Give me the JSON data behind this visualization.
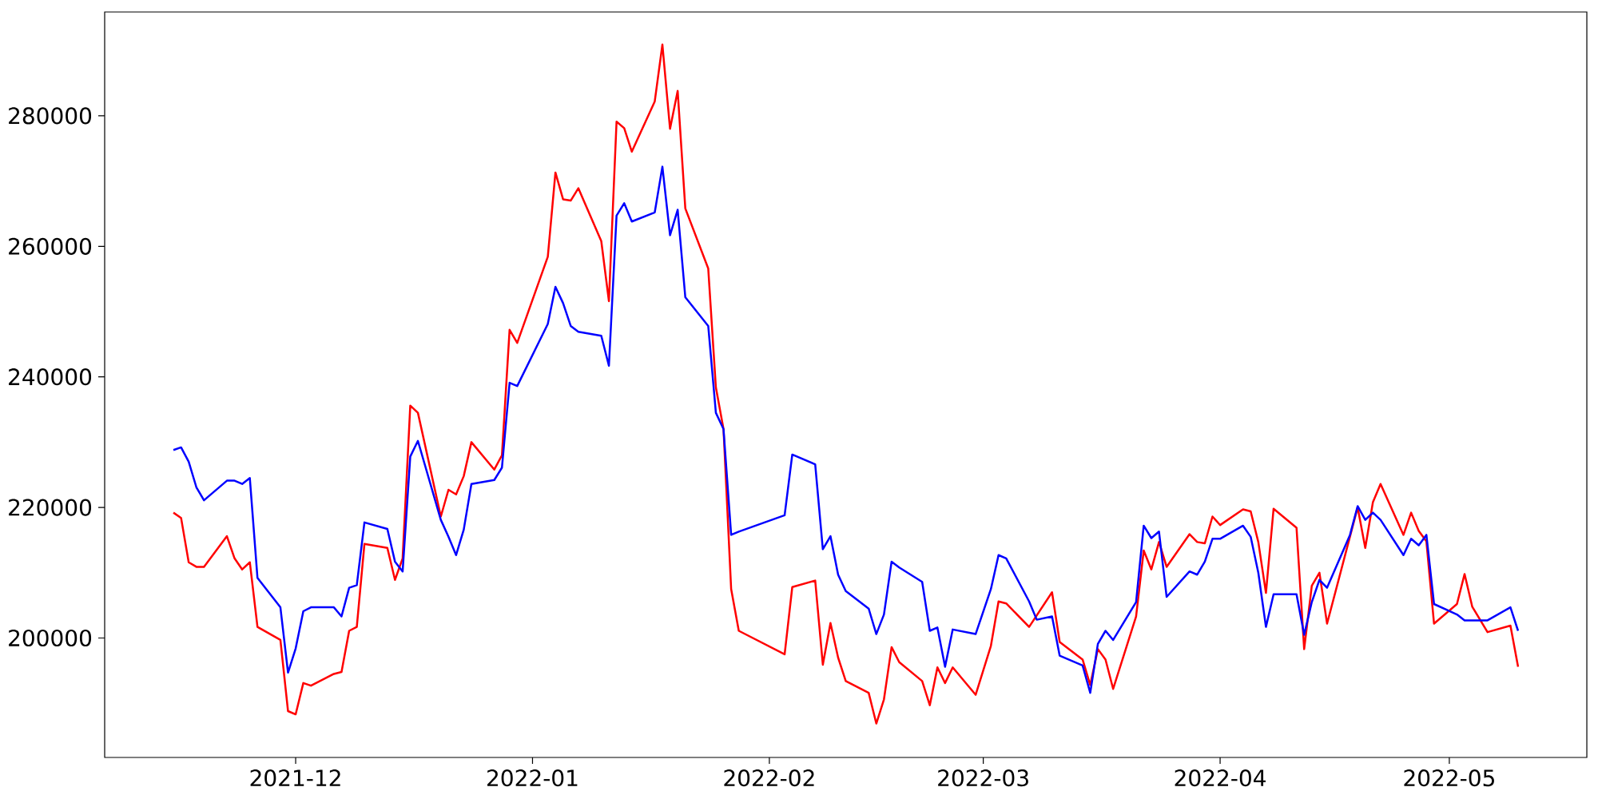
{
  "chart_data": {
    "type": "line",
    "xlim": [
      "2021-11-06",
      "2022-05-19"
    ],
    "ylim": [
      181700,
      295900
    ],
    "xticks": [
      {
        "value": "2021-12-01",
        "label": "2021-12"
      },
      {
        "value": "2022-01-01",
        "label": "2022-01"
      },
      {
        "value": "2022-02-01",
        "label": "2022-02"
      },
      {
        "value": "2022-03-01",
        "label": "2022-03"
      },
      {
        "value": "2022-04-01",
        "label": "2022-04"
      },
      {
        "value": "2022-05-01",
        "label": "2022-05"
      }
    ],
    "yticks": [
      200000,
      220000,
      240000,
      260000,
      280000
    ],
    "marker": "none",
    "line_style": "solid",
    "series": [
      {
        "color": "#ff0000",
        "x": [
          "2021-11-15",
          "2021-11-16",
          "2021-11-17",
          "2021-11-18",
          "2021-11-19",
          "2021-11-22",
          "2021-11-23",
          "2021-11-24",
          "2021-11-25",
          "2021-11-26",
          "2021-11-29",
          "2021-11-30",
          "2021-12-01",
          "2021-12-02",
          "2021-12-03",
          "2021-12-06",
          "2021-12-07",
          "2021-12-08",
          "2021-12-09",
          "2021-12-10",
          "2021-12-13",
          "2021-12-14",
          "2021-12-15",
          "2021-12-16",
          "2021-12-17",
          "2021-12-20",
          "2021-12-21",
          "2021-12-22",
          "2021-12-23",
          "2021-12-24",
          "2021-12-27",
          "2021-12-28",
          "2021-12-29",
          "2021-12-30",
          "2022-01-03",
          "2022-01-04",
          "2022-01-05",
          "2022-01-06",
          "2022-01-07",
          "2022-01-10",
          "2022-01-11",
          "2022-01-12",
          "2022-01-13",
          "2022-01-14",
          "2022-01-17",
          "2022-01-18",
          "2022-01-19",
          "2022-01-20",
          "2022-01-21",
          "2022-01-24",
          "2022-01-25",
          "2022-01-26",
          "2022-01-27",
          "2022-01-28",
          "2022-02-03",
          "2022-02-04",
          "2022-02-07",
          "2022-02-08",
          "2022-02-09",
          "2022-02-10",
          "2022-02-11",
          "2022-02-14",
          "2022-02-15",
          "2022-02-16",
          "2022-02-17",
          "2022-02-18",
          "2022-02-21",
          "2022-02-22",
          "2022-02-23",
          "2022-02-24",
          "2022-02-25",
          "2022-02-28",
          "2022-03-02",
          "2022-03-03",
          "2022-03-04",
          "2022-03-07",
          "2022-03-10",
          "2022-03-11",
          "2022-03-14",
          "2022-03-15",
          "2022-03-16",
          "2022-03-17",
          "2022-03-18",
          "2022-03-21",
          "2022-03-22",
          "2022-03-23",
          "2022-03-24",
          "2022-03-25",
          "2022-03-28",
          "2022-03-29",
          "2022-03-30",
          "2022-03-31",
          "2022-04-01",
          "2022-04-04",
          "2022-04-05",
          "2022-04-06",
          "2022-04-07",
          "2022-04-08",
          "2022-04-11",
          "2022-04-12",
          "2022-04-13",
          "2022-04-14",
          "2022-04-15",
          "2022-04-19",
          "2022-04-20",
          "2022-04-21",
          "2022-04-22",
          "2022-04-25",
          "2022-04-26",
          "2022-04-27",
          "2022-04-28",
          "2022-04-29",
          "2022-05-02",
          "2022-05-03",
          "2022-05-04",
          "2022-05-06",
          "2022-05-09",
          "2022-05-10"
        ],
        "values": [
          219200,
          218400,
          211600,
          210900,
          210900,
          215600,
          212200,
          210500,
          211600,
          201700,
          199700,
          188800,
          188300,
          193100,
          192700,
          194500,
          194800,
          201100,
          201700,
          214400,
          213800,
          208900,
          212200,
          235600,
          234500,
          218600,
          222700,
          222000,
          224800,
          230000,
          225800,
          228000,
          247200,
          245200,
          258400,
          271300,
          267200,
          267000,
          268900,
          260800,
          251600,
          279100,
          278100,
          274500,
          282200,
          290900,
          278000,
          283800,
          265800,
          256600,
          238400,
          232000,
          207500,
          201100,
          197500,
          207800,
          208800,
          195900,
          202300,
          197000,
          193400,
          191600,
          186900,
          190600,
          198600,
          196300,
          193400,
          189700,
          195500,
          193100,
          195500,
          191300,
          198800,
          205600,
          205300,
          201700,
          207000,
          199400,
          196700,
          192800,
          198300,
          196700,
          192200,
          203300,
          213400,
          210500,
          214700,
          210900,
          215900,
          214700,
          214500,
          218600,
          217300,
          219700,
          219400,
          214700,
          206900,
          219800,
          216900,
          198300,
          208000,
          210000,
          202200,
          220000,
          213800,
          220800,
          223600,
          215800,
          219200,
          216400,
          214800,
          202200,
          205200,
          209800,
          204800,
          200900,
          201900,
          195600
        ]
      },
      {
        "color": "#0000ff",
        "x": [
          "2021-11-15",
          "2021-11-16",
          "2021-11-17",
          "2021-11-18",
          "2021-11-19",
          "2021-11-22",
          "2021-11-23",
          "2021-11-24",
          "2021-11-25",
          "2021-11-26",
          "2021-11-29",
          "2021-11-30",
          "2021-12-01",
          "2021-12-02",
          "2021-12-03",
          "2021-12-06",
          "2021-12-07",
          "2021-12-08",
          "2021-12-09",
          "2021-12-10",
          "2021-12-13",
          "2021-12-14",
          "2021-12-15",
          "2021-12-16",
          "2021-12-17",
          "2021-12-20",
          "2021-12-21",
          "2021-12-22",
          "2021-12-23",
          "2021-12-24",
          "2021-12-27",
          "2021-12-28",
          "2021-12-29",
          "2021-12-30",
          "2022-01-03",
          "2022-01-04",
          "2022-01-05",
          "2022-01-06",
          "2022-01-07",
          "2022-01-10",
          "2022-01-11",
          "2022-01-12",
          "2022-01-13",
          "2022-01-14",
          "2022-01-17",
          "2022-01-18",
          "2022-01-19",
          "2022-01-20",
          "2022-01-21",
          "2022-01-24",
          "2022-01-25",
          "2022-01-26",
          "2022-01-27",
          "2022-01-28",
          "2022-02-03",
          "2022-02-04",
          "2022-02-07",
          "2022-02-08",
          "2022-02-09",
          "2022-02-10",
          "2022-02-11",
          "2022-02-14",
          "2022-02-15",
          "2022-02-16",
          "2022-02-17",
          "2022-02-18",
          "2022-02-21",
          "2022-02-22",
          "2022-02-23",
          "2022-02-24",
          "2022-02-25",
          "2022-02-28",
          "2022-03-02",
          "2022-03-03",
          "2022-03-04",
          "2022-03-07",
          "2022-03-08",
          "2022-03-10",
          "2022-03-11",
          "2022-03-14",
          "2022-03-15",
          "2022-03-16",
          "2022-03-17",
          "2022-03-18",
          "2022-03-21",
          "2022-03-22",
          "2022-03-23",
          "2022-03-24",
          "2022-03-25",
          "2022-03-28",
          "2022-03-29",
          "2022-03-30",
          "2022-03-31",
          "2022-04-01",
          "2022-04-04",
          "2022-04-05",
          "2022-04-06",
          "2022-04-07",
          "2022-04-08",
          "2022-04-11",
          "2022-04-12",
          "2022-04-13",
          "2022-04-14",
          "2022-04-15",
          "2022-04-18",
          "2022-04-19",
          "2022-04-20",
          "2022-04-21",
          "2022-04-22",
          "2022-04-25",
          "2022-04-26",
          "2022-04-27",
          "2022-04-28",
          "2022-04-29",
          "2022-05-02",
          "2022-05-03",
          "2022-05-06",
          "2022-05-09",
          "2022-05-10"
        ],
        "values": [
          228800,
          229200,
          227000,
          223100,
          221100,
          224100,
          224100,
          223600,
          224500,
          209200,
          204700,
          194700,
          198400,
          204100,
          204700,
          204700,
          203300,
          207700,
          208100,
          217700,
          216700,
          211700,
          210200,
          227800,
          230200,
          218100,
          215500,
          212700,
          216600,
          223600,
          224200,
          226100,
          239100,
          238600,
          248100,
          253800,
          251300,
          247800,
          246900,
          246300,
          241700,
          264700,
          266600,
          263800,
          265200,
          272200,
          261700,
          265600,
          252200,
          247800,
          234500,
          232000,
          215800,
          216300,
          218800,
          228100,
          226600,
          213600,
          215600,
          209700,
          207200,
          204500,
          200600,
          203600,
          211700,
          210800,
          208600,
          201100,
          201600,
          195600,
          201300,
          200600,
          207500,
          212700,
          212200,
          205600,
          202800,
          203300,
          197300,
          195800,
          191600,
          199100,
          201100,
          199700,
          205500,
          217200,
          215300,
          216300,
          206300,
          210200,
          209700,
          211700,
          215200,
          215200,
          217200,
          215500,
          210000,
          201700,
          206700,
          206700,
          200500,
          205500,
          208900,
          207700,
          215800,
          220200,
          218100,
          219200,
          218100,
          212700,
          215200,
          214200,
          215800,
          205200,
          203600,
          202700,
          202700,
          204700,
          201100
        ]
      }
    ]
  }
}
